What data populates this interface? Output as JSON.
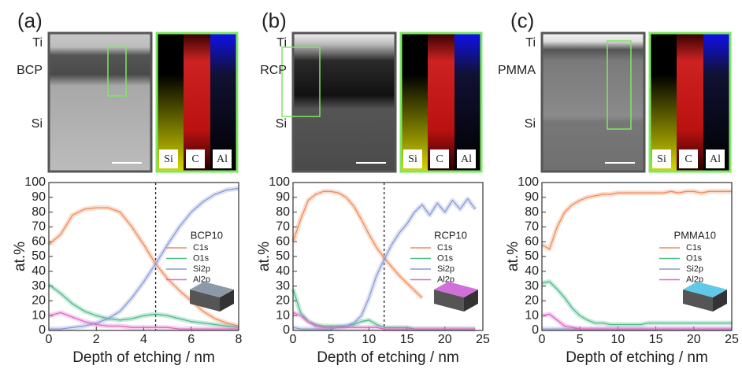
{
  "chart_data": [
    {
      "type": "line",
      "panel_label": "(a)",
      "image_labels": [
        "Ti",
        "BCP",
        "Si"
      ],
      "map_labels": [
        "Si",
        "C",
        "Al"
      ],
      "legend_title": "BCP10",
      "xlabel": "Depth of etching / nm",
      "ylabel": "at.%",
      "xlim": [
        0,
        8
      ],
      "xticks": [
        0,
        2,
        4,
        6,
        8
      ],
      "ylim": [
        0,
        100
      ],
      "yticks": [
        0,
        10,
        20,
        30,
        40,
        50,
        60,
        70,
        80,
        90,
        100
      ],
      "vline": 4.5,
      "x": [
        0,
        0.5,
        1,
        1.5,
        2,
        2.5,
        3,
        3.5,
        4,
        4.5,
        5,
        5.5,
        6,
        6.5,
        7,
        7.5,
        8
      ],
      "series": [
        {
          "name": "C1s",
          "color": "#f08c5a",
          "values": [
            58,
            65,
            78,
            82,
            83,
            83,
            80,
            70,
            58,
            45,
            35,
            27,
            20,
            13,
            8,
            5,
            3
          ]
        },
        {
          "name": "O1s",
          "color": "#4dbb8a",
          "values": [
            31,
            25,
            18,
            13,
            10,
            8,
            7,
            8,
            10,
            11,
            10,
            8,
            6,
            5,
            4,
            3,
            2
          ]
        },
        {
          "name": "Si2p",
          "color": "#8a9ad6",
          "values": [
            1,
            1,
            2,
            3,
            5,
            8,
            13,
            22,
            33,
            45,
            58,
            70,
            80,
            87,
            92,
            95,
            96
          ]
        },
        {
          "name": "Al2p",
          "color": "#e066c8",
          "values": [
            10,
            12,
            9,
            6,
            4,
            3,
            3,
            2,
            2,
            2,
            2,
            1,
            1,
            1,
            1,
            1,
            1
          ]
        }
      ]
    },
    {
      "type": "line",
      "panel_label": "(b)",
      "image_labels": [
        "Ti",
        "RCP",
        "Si"
      ],
      "map_labels": [
        "Si",
        "C",
        "Al"
      ],
      "legend_title": "RCP10",
      "xlabel": "Depth of etching / nm",
      "ylabel": "at.%",
      "xlim": [
        0,
        25
      ],
      "xticks": [
        0,
        5,
        10,
        15,
        20,
        25
      ],
      "ylim": [
        0,
        100
      ],
      "yticks": [
        0,
        10,
        20,
        30,
        40,
        50,
        60,
        70,
        80,
        90,
        100
      ],
      "vline": 12,
      "x": [
        0,
        1,
        2,
        3,
        4,
        5,
        6,
        7,
        8,
        9,
        10,
        11,
        12,
        13,
        14,
        15,
        16,
        17,
        18,
        19,
        20,
        21,
        22,
        23,
        24
      ],
      "series": [
        {
          "name": "C1s",
          "color": "#f08c5a",
          "values": [
            60,
            75,
            88,
            92,
            94,
            94,
            93,
            90,
            84,
            75,
            65,
            56,
            49,
            43,
            37,
            32,
            27,
            22,
            null,
            null,
            null,
            null,
            null,
            null,
            null
          ]
        },
        {
          "name": "O1s",
          "color": "#4dbb8a",
          "values": [
            28,
            12,
            6,
            4,
            3,
            3,
            3,
            3,
            4,
            6,
            7,
            4,
            2,
            2,
            2,
            2,
            1,
            1,
            1,
            1,
            1,
            1,
            1,
            1,
            1
          ]
        },
        {
          "name": "Si2p",
          "color": "#8a9ad6",
          "values": [
            2,
            1,
            1,
            1,
            1,
            1,
            2,
            3,
            5,
            10,
            22,
            37,
            48,
            58,
            66,
            72,
            80,
            85,
            78,
            86,
            80,
            88,
            82,
            89,
            82
          ]
        },
        {
          "name": "Al2p",
          "color": "#e066c8",
          "values": [
            12,
            10,
            6,
            3,
            2,
            2,
            2,
            2,
            2,
            2,
            2,
            2,
            1,
            1,
            1,
            1,
            1,
            1,
            1,
            1,
            1,
            1,
            1,
            1,
            1
          ]
        }
      ]
    },
    {
      "type": "line",
      "panel_label": "(c)",
      "image_labels": [
        "Ti",
        "PMMA",
        "Si"
      ],
      "map_labels": [
        "Si",
        "C",
        "Al"
      ],
      "legend_title": "PMMA10",
      "xlabel": "Depth of etching / nm",
      "ylabel": "at.%",
      "xlim": [
        0,
        25
      ],
      "xticks": [
        0,
        5,
        10,
        15,
        20,
        25
      ],
      "ylim": [
        0,
        100
      ],
      "yticks": [
        0,
        10,
        20,
        30,
        40,
        50,
        60,
        70,
        80,
        90,
        100
      ],
      "x": [
        0,
        1,
        2,
        3,
        4,
        5,
        6,
        7,
        8,
        9,
        10,
        11,
        12,
        13,
        14,
        15,
        16,
        17,
        18,
        19,
        20,
        21,
        22,
        23,
        24,
        25
      ],
      "series": [
        {
          "name": "C1s",
          "color": "#f08c5a",
          "values": [
            58,
            55,
            70,
            80,
            85,
            88,
            90,
            91,
            92,
            92,
            93,
            93,
            93,
            93,
            93,
            93,
            93,
            94,
            93,
            94,
            94,
            93,
            94,
            94,
            94,
            94
          ]
        },
        {
          "name": "O1s",
          "color": "#4dbb8a",
          "values": [
            32,
            33,
            28,
            22,
            15,
            10,
            7,
            5,
            5,
            4,
            4,
            4,
            4,
            4,
            5,
            5,
            5,
            5,
            5,
            5,
            5,
            5,
            5,
            5,
            5,
            5
          ]
        },
        {
          "name": "Si2p",
          "color": "#8a9ad6",
          "values": [
            1,
            1,
            1,
            1,
            1,
            1,
            1,
            1,
            1,
            1,
            1,
            1,
            1,
            1,
            1,
            1,
            1,
            1,
            1,
            1,
            1,
            1,
            1,
            1,
            1,
            1
          ]
        },
        {
          "name": "Al2p",
          "color": "#e066c8",
          "values": [
            10,
            11,
            7,
            3,
            2,
            1,
            1,
            1,
            1,
            1,
            1,
            1,
            1,
            1,
            1,
            1,
            1,
            1,
            1,
            1,
            1,
            1,
            1,
            1,
            1,
            1
          ]
        }
      ]
    }
  ]
}
